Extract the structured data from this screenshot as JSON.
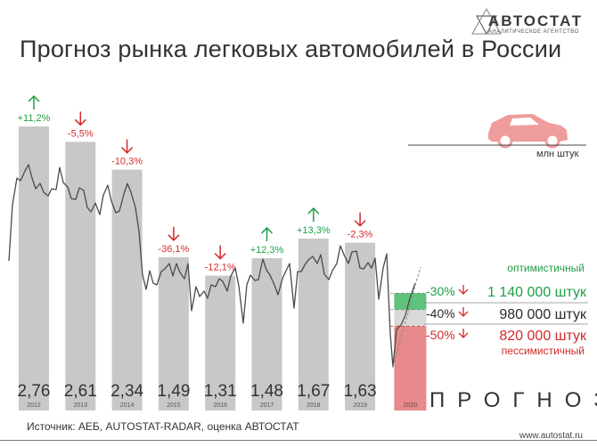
{
  "header": {
    "brand": "АВТОСТАТ",
    "brand_sub": "АНАЛИТИЧЕСКОЕ АГЕНТСТВО",
    "title": "Прогноз рынка легковых автомобилей в России"
  },
  "unit_label": "млн штук",
  "forecast_word": "ПРОГНОЗ",
  "source": "Источник: АЕБ, AUTOSTAT-RADAR, оценка АВТОСТАТ",
  "website": "www.autostat.ru",
  "colors": {
    "bar": "#c8c8c8",
    "line": "#4a4a4a",
    "up": "#1f9e46",
    "down": "#d42a2a",
    "optimistic": "#5fc27d",
    "pessimistic": "#e8898b",
    "car": "#ef9c9c"
  },
  "chart_data": {
    "type": "bar",
    "categories": [
      "2012",
      "2013",
      "2014",
      "2015",
      "2016",
      "2017",
      "2018",
      "2019"
    ],
    "values": [
      2.76,
      2.61,
      2.34,
      1.49,
      1.31,
      1.48,
      1.67,
      1.63
    ],
    "value_labels": [
      "2,76",
      "2,61",
      "2,34",
      "1,49",
      "1,31",
      "1,48",
      "1,67",
      "1,63"
    ],
    "changes": [
      {
        "label": "+11,2%",
        "dir": "up"
      },
      {
        "label": "-5,5%",
        "dir": "down"
      },
      {
        "label": "-10,3%",
        "dir": "down"
      },
      {
        "label": "-36,1%",
        "dir": "down"
      },
      {
        "label": "-12,1%",
        "dir": "down"
      },
      {
        "label": "+12,3%",
        "dir": "up"
      },
      {
        "label": "+13,3%",
        "dir": "up"
      },
      {
        "label": "-2,3%",
        "dir": "down"
      }
    ],
    "forecast": {
      "year": "2020",
      "scenarios": [
        {
          "name": "оптимистичный",
          "change": "-30%",
          "value_text": "1 140 000 штук",
          "value": 1.14,
          "color": "#1f9e46"
        },
        {
          "name": "",
          "change": "-40%",
          "value_text": "980 000 штук",
          "value": 0.98,
          "color": "#2b2b2b"
        },
        {
          "name": "пессимистичный",
          "change": "-50%",
          "value_text": "820 000 штук",
          "value": 0.82,
          "color": "#d42a2a"
        }
      ]
    },
    "monthly_trend_shown": true,
    "ylim": [
      0,
      3.2
    ]
  }
}
